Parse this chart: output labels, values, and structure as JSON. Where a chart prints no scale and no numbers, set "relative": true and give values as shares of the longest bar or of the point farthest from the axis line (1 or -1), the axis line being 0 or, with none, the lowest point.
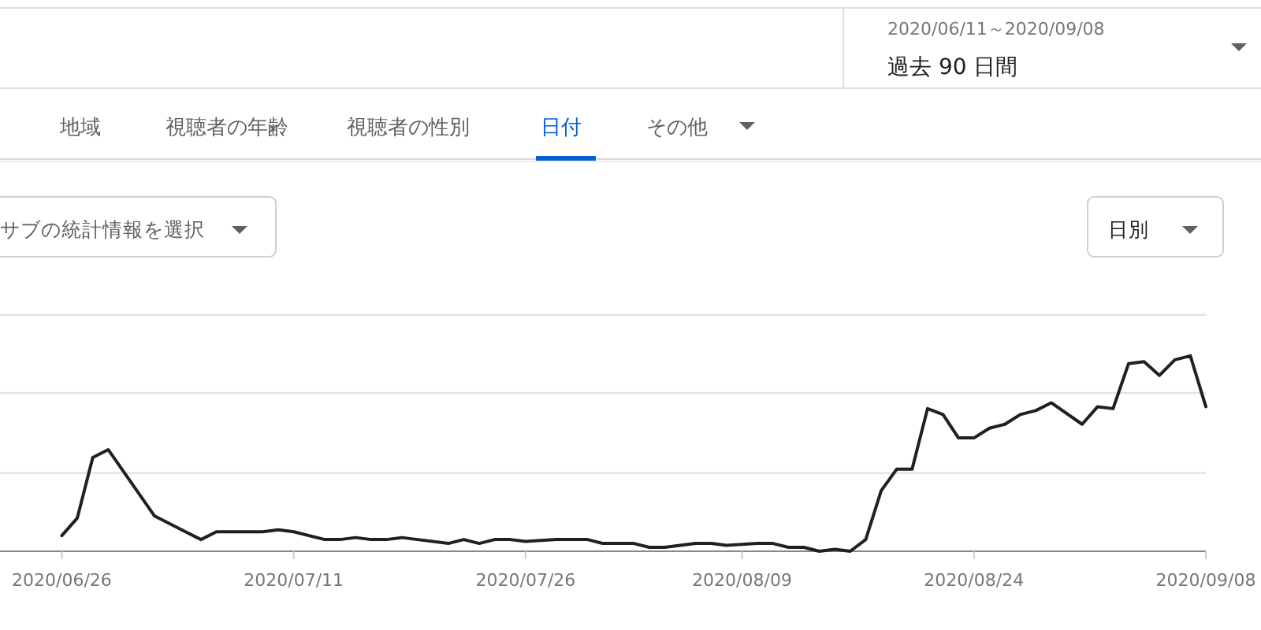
{
  "chart_data": {
    "type": "line",
    "relative": true,
    "x": [
      "2020-06-26",
      "2020-06-27",
      "2020-06-28",
      "2020-06-29",
      "2020-07-02",
      "2020-07-04",
      "2020-07-05",
      "2020-07-06",
      "2020-07-08",
      "2020-07-09",
      "2020-07-10",
      "2020-07-11",
      "2020-07-13",
      "2020-07-14",
      "2020-07-15",
      "2020-07-16",
      "2020-07-17",
      "2020-07-18",
      "2020-07-19",
      "2020-07-21",
      "2020-07-22",
      "2020-07-23",
      "2020-07-24",
      "2020-07-25",
      "2020-07-26",
      "2020-07-28",
      "2020-07-30",
      "2020-07-31",
      "2020-08-02",
      "2020-08-03",
      "2020-08-04",
      "2020-08-06",
      "2020-08-07",
      "2020-08-08",
      "2020-08-10",
      "2020-08-11",
      "2020-08-12",
      "2020-08-13",
      "2020-08-14",
      "2020-08-15",
      "2020-08-16",
      "2020-08-17",
      "2020-08-18",
      "2020-08-19",
      "2020-08-20",
      "2020-08-21",
      "2020-08-22",
      "2020-08-23",
      "2020-08-24",
      "2020-08-25",
      "2020-08-26",
      "2020-08-27",
      "2020-08-28",
      "2020-08-29",
      "2020-08-31",
      "2020-09-01",
      "2020-09-02",
      "2020-09-03",
      "2020-09-04",
      "2020-09-05",
      "2020-09-06",
      "2020-09-07",
      "2020-09-08"
    ],
    "series": [
      {
        "color": "#202020",
        "values": [
          0.08,
          0.17,
          0.48,
          0.52,
          0.18,
          0.1,
          0.06,
          0.1,
          0.1,
          0.1,
          0.11,
          0.1,
          0.06,
          0.06,
          0.07,
          0.06,
          0.06,
          0.07,
          0.06,
          0.04,
          0.06,
          0.04,
          0.06,
          0.06,
          0.05,
          0.06,
          0.06,
          0.04,
          0.04,
          0.02,
          0.02,
          0.04,
          0.04,
          0.03,
          0.04,
          0.04,
          0.02,
          0.02,
          0,
          0.01,
          0,
          0.06,
          0.31,
          0.42,
          0.42,
          0.73,
          0.7,
          0.58,
          0.58,
          0.63,
          0.65,
          0.7,
          0.72,
          0.76,
          0.65,
          0.74,
          0.73,
          0.96,
          0.97,
          0.9,
          0.98,
          1.0,
          0.74
        ]
      }
    ],
    "xlim": [
      "2020-06-22",
      "2020-09-08"
    ],
    "ref_lines": [
      {
        "axis": "y",
        "value": 0.4,
        "color": "#e3e3e3"
      },
      {
        "axis": "y",
        "value": 0.81,
        "color": "#e3e3e3"
      },
      {
        "axis": "y",
        "value": 1.21,
        "color": "#e3e3e3"
      }
    ],
    "xticks": [
      {
        "value": "2020-06-26",
        "label": "2020/06/26"
      },
      {
        "value": "2020-07-11",
        "label": "2020/07/11"
      },
      {
        "value": "2020-07-26",
        "label": "2020/07/26"
      },
      {
        "value": "2020-08-09",
        "label": "2020/08/09"
      },
      {
        "value": "2020-08-24",
        "label": "2020/08/24"
      },
      {
        "value": "2020-09-08",
        "label": "2020/09/08"
      }
    ],
    "marker": "none",
    "line_style": "solid",
    "annotations": [
      "2020/06/11～2020/09/08",
      "過去 90 日間",
      "地域",
      "視聴者の年齢",
      "視聴者の性別",
      "日付",
      "その他",
      "サブの統計情報を選択",
      "日別"
    ]
  }
}
